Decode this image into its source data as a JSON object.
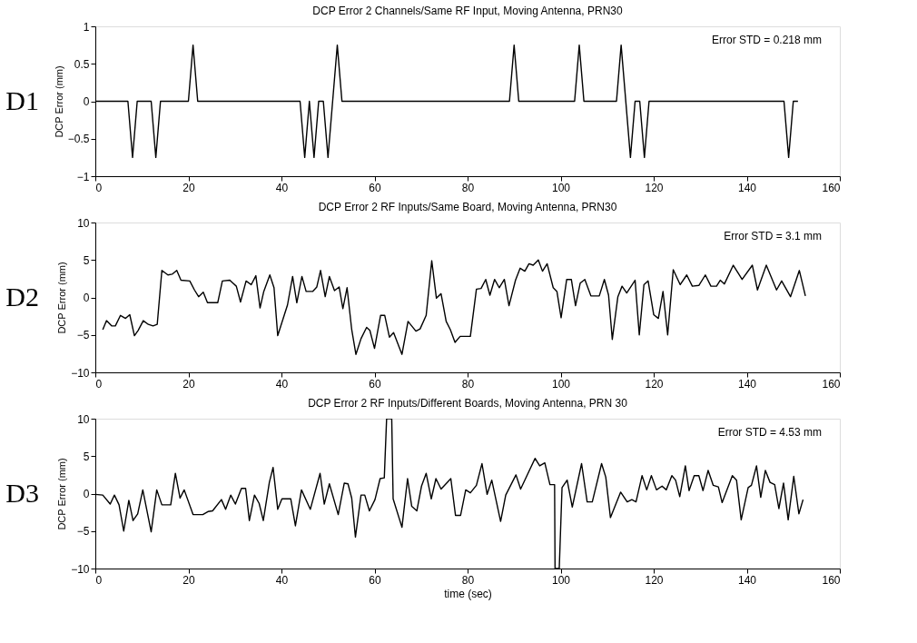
{
  "chart_data": [
    {
      "type": "line",
      "title": "DCP Error 2 Channels/Same RF Input, Moving Antenna, PRN30",
      "ylabel": "DCP Error (mm)",
      "annotations": [
        "D1",
        "Error STD = 0.218 mm"
      ],
      "xlim": [
        0,
        160
      ],
      "xticks": [
        0,
        20,
        40,
        60,
        80,
        100,
        120,
        140,
        160
      ],
      "ylim": [
        -1,
        1
      ],
      "yticks": [
        -1,
        -0.5,
        0,
        0.5,
        1
      ],
      "grid": false,
      "marker": "none",
      "line_style": "solid",
      "series": [
        {
          "color": "#000000",
          "x": [
            0,
            7,
            8,
            9,
            12,
            13,
            14,
            20,
            21,
            22,
            44,
            45,
            46,
            47,
            48,
            49,
            50,
            51,
            52,
            53,
            89,
            90,
            91,
            103,
            104,
            105,
            112,
            113,
            115,
            116,
            117,
            118,
            119,
            148,
            149,
            150,
            151
          ],
          "values": [
            0,
            0,
            -0.75,
            0,
            0,
            -0.75,
            0,
            0,
            0.75,
            0,
            0,
            -0.75,
            0,
            -0.75,
            0,
            0,
            -0.75,
            0,
            0.75,
            0,
            0,
            0.75,
            0,
            0,
            0.75,
            0,
            0,
            0.75,
            -0.75,
            0,
            0,
            -0.75,
            0,
            0,
            -0.75,
            0,
            0
          ]
        }
      ]
    },
    {
      "type": "line",
      "title": "DCP Error 2 RF Inputs/Same Board, Moving Antenna, PRN30",
      "ylabel": "DCP Error (mm)",
      "annotations": [
        "D2",
        "Error STD = 3.1 mm"
      ],
      "xlim": [
        0,
        160
      ],
      "xticks": [
        0,
        20,
        40,
        60,
        80,
        100,
        120,
        140,
        160
      ],
      "ylim": [
        -10,
        10
      ],
      "yticks": [
        -10,
        -5,
        0,
        5,
        10
      ],
      "grid": false,
      "marker": "none",
      "line_style": "solid",
      "series": [
        {
          "color": "#000000",
          "x": [
            1.6,
            2.4,
            3.5,
            4.3,
            5.4,
            6.5,
            7.4,
            8.4,
            9.2,
            10.3,
            11.4,
            12.4,
            13.3,
            14.3,
            15.6,
            16.5,
            17.5,
            18.4,
            20.3,
            21.3,
            22.2,
            23.2,
            24.1,
            26.3,
            27.3,
            28.9,
            30.3,
            31.2,
            32.4,
            33.5,
            34.5,
            35.4,
            36.2,
            37.5,
            38.4,
            39.2,
            41.3,
            42.4,
            43.3,
            44.4,
            45.3,
            46.7,
            47.6,
            48.4,
            49.4,
            50.3,
            51.4,
            52.4,
            53.2,
            54.1,
            55.1,
            56.0,
            57.1,
            58.3,
            59.0,
            60.0,
            61.3,
            62.2,
            63.2,
            64.1,
            65.9,
            67.2,
            68.9,
            69.8,
            71.1,
            72.3,
            73.3,
            74.3,
            75.4,
            76.3,
            77.3,
            78.4,
            80.6,
            81.9,
            82.9,
            83.9,
            84.8,
            85.8,
            86.8,
            87.9,
            88.9,
            90.3,
            91.3,
            92.3,
            93.2,
            94.1,
            95.2,
            96.1,
            97.1,
            98.4,
            99.2,
            100.1,
            101.3,
            102.3,
            103.2,
            104.2,
            105.2,
            106.5,
            108.3,
            109.4,
            110.3,
            111.1,
            112.3,
            113.2,
            114.2,
            116.0,
            116.9,
            117.9,
            118.8,
            120.0,
            121.0,
            122.0,
            123.0,
            124.2,
            125.7,
            127.1,
            128.3,
            129.7,
            131.1,
            132.3,
            133.5,
            134.3,
            135.2,
            137.1,
            139.0,
            141.2,
            142.3,
            144.2,
            146.4,
            147.5,
            149.4,
            151.3,
            152.6
          ],
          "values": [
            -4.3,
            -3.1,
            -3.8,
            -3.8,
            -2.4,
            -2.8,
            -2.3,
            -5.1,
            -4.4,
            -3.1,
            -3.6,
            -3.8,
            -3.6,
            3.6,
            3.0,
            3.1,
            3.6,
            2.3,
            2.2,
            1.0,
            0.1,
            0.7,
            -0.7,
            -0.7,
            2.2,
            2.3,
            1.5,
            -0.6,
            2.2,
            1.7,
            2.9,
            -1.4,
            0.8,
            3.0,
            1.3,
            -5.1,
            -1.0,
            2.8,
            -0.7,
            2.8,
            0.8,
            0.8,
            1.4,
            3.6,
            0.1,
            2.8,
            0.9,
            1.4,
            -1.5,
            1.3,
            -4.3,
            -7.6,
            -5.5,
            -4.0,
            -4.4,
            -6.8,
            -2.4,
            -2.4,
            -5.3,
            -4.7,
            -7.6,
            -3.2,
            -4.5,
            -4.2,
            -2.4,
            4.9,
            -0.1,
            0.5,
            -3.2,
            -4.3,
            -6.0,
            -5.2,
            -5.2,
            1.1,
            1.2,
            2.4,
            0.3,
            2.4,
            1.3,
            2.4,
            -1.1,
            2.3,
            3.9,
            3.5,
            4.5,
            4.3,
            5.0,
            3.5,
            4.5,
            1.3,
            0.8,
            -2.7,
            2.4,
            2.4,
            -1.1,
            1.9,
            2.4,
            0.2,
            0.2,
            2.4,
            0.3,
            -5.6,
            0.1,
            1.5,
            0.6,
            2.3,
            -5.0,
            1.7,
            2.2,
            -2.3,
            -2.8,
            0.8,
            -5.0,
            3.7,
            1.7,
            3.0,
            1.5,
            1.6,
            3.0,
            1.5,
            1.5,
            2.3,
            1.8,
            4.3,
            2.4,
            4.3,
            1.0,
            4.3,
            1.0,
            2.2,
            0.1,
            3.6,
            0.2
          ]
        }
      ]
    },
    {
      "type": "line",
      "title": "DCP Error 2 RF Inputs/Different Boards, Moving Antenna, PRN 30",
      "xlabel": "time (sec)",
      "ylabel": "DCP Error (mm)",
      "annotations": [
        "D3",
        "Error STD = 4.53 mm"
      ],
      "xlim": [
        0,
        160
      ],
      "xticks": [
        0,
        20,
        40,
        60,
        80,
        100,
        120,
        140,
        160
      ],
      "ylim": [
        -10,
        10
      ],
      "yticks": [
        -10,
        -5,
        0,
        5,
        10
      ],
      "grid": false,
      "marker": "none",
      "line_style": "solid",
      "series": [
        {
          "color": "#000000",
          "x": [
            0.0,
            1.6,
            3.2,
            4.1,
            5.1,
            6.1,
            7.2,
            8.1,
            9.1,
            10.2,
            12.0,
            13.2,
            14.3,
            16.2,
            17.2,
            18.2,
            19.1,
            21.0,
            23.1,
            24.2,
            25.2,
            27.1,
            28.0,
            29.1,
            30.1,
            31.4,
            32.3,
            33.1,
            34.2,
            35.2,
            36.1,
            37.4,
            38.2,
            39.2,
            40.1,
            42.0,
            43.0,
            44.3,
            46.2,
            48.3,
            49.2,
            50.3,
            52.2,
            53.5,
            54.3,
            55.1,
            55.9,
            57.1,
            57.9,
            58.9,
            60.1,
            61.2,
            62.1,
            62.6,
            63.7,
            64.0,
            65.9,
            67.1,
            68.0,
            69.1,
            70.1,
            71.1,
            72.2,
            73.2,
            74.3,
            76.4,
            77.4,
            78.5,
            79.6,
            80.6,
            81.9,
            83.1,
            84.2,
            85.2,
            87.1,
            88.2,
            90.4,
            91.4,
            94.5,
            95.5,
            96.6,
            97.7,
            98.7,
            98.8,
            99.7,
            100.3,
            101.4,
            102.5,
            104.5,
            105.7,
            106.8,
            108.8,
            109.7,
            110.7,
            112.9,
            114.3,
            115.3,
            116.2,
            117.5,
            118.5,
            119.5,
            120.6,
            121.8,
            122.7,
            123.9,
            124.7,
            125.6,
            126.8,
            127.6,
            128.7,
            129.7,
            130.6,
            131.7,
            132.8,
            133.9,
            134.7,
            136.9,
            137.8,
            138.8,
            140.3,
            141.0,
            142.1,
            143.0,
            144.0,
            145.0,
            146.0,
            146.9,
            147.9,
            148.9,
            150.1,
            151.2,
            152.1
          ],
          "values": [
            -0.1,
            -0.2,
            -1.4,
            -0.2,
            -1.5,
            -5.0,
            -0.9,
            -3.6,
            -2.7,
            0.5,
            -5.1,
            0.5,
            -1.5,
            -1.5,
            2.7,
            -0.6,
            0.5,
            -2.8,
            -2.8,
            -2.4,
            -2.3,
            -0.8,
            -2.1,
            -0.2,
            -1.4,
            0.7,
            0.7,
            -3.6,
            -0.2,
            -1.3,
            -3.6,
            1.5,
            3.5,
            -2.1,
            -0.7,
            -0.7,
            -4.3,
            0.5,
            -2.1,
            2.7,
            -1.4,
            1.3,
            -2.8,
            1.4,
            1.3,
            -0.6,
            -5.8,
            -0.2,
            -0.2,
            -2.3,
            -0.8,
            2.0,
            2.1,
            10,
            10,
            -0.7,
            -4.5,
            2.0,
            -1.7,
            -2.3,
            1.0,
            2.7,
            -0.7,
            2.0,
            0.6,
            2.0,
            -2.9,
            -2.9,
            0.5,
            0.1,
            1.1,
            4.0,
            -0.1,
            1.8,
            -3.7,
            -0.2,
            2.5,
            0.6,
            4.7,
            3.7,
            4.1,
            1.2,
            1.2,
            -10,
            -10,
            0.8,
            1.8,
            -1.8,
            4.0,
            -1.1,
            -1.1,
            4.0,
            2.2,
            -3.2,
            0.2,
            -1.1,
            -0.8,
            -1.1,
            2.4,
            0.5,
            2.4,
            0.5,
            1.0,
            0.5,
            2.4,
            1.8,
            -0.4,
            3.7,
            0.4,
            2.4,
            2.4,
            0.4,
            3.1,
            1.1,
            0.9,
            -1.2,
            2.4,
            1.8,
            -3.5,
            0.8,
            1.1,
            3.7,
            -0.5,
            3.1,
            1.5,
            1.2,
            -2.0,
            1.4,
            -3.5,
            2.3,
            -2.7,
            -0.8
          ]
        }
      ]
    }
  ]
}
